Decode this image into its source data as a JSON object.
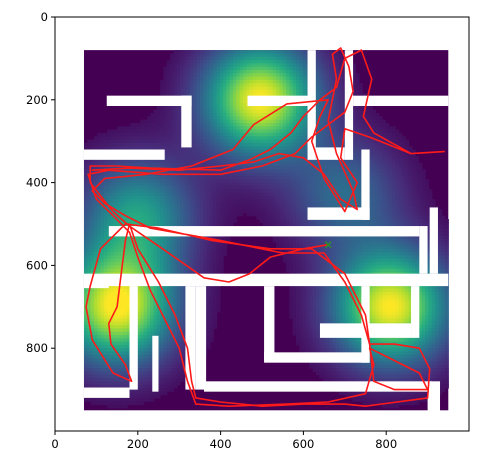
{
  "chart_data": {
    "type": "heatmap",
    "title": "",
    "xlabel": "",
    "ylabel": "",
    "xlim": [
      0,
      1000
    ],
    "ylim": [
      1000,
      0
    ],
    "x_ticks": [
      0,
      200,
      400,
      600,
      800
    ],
    "y_ticks": [
      0,
      200,
      400,
      600,
      800
    ],
    "x_tick_labels": [
      "0",
      "200",
      "400",
      "600",
      "800"
    ],
    "y_tick_labels": [
      "0",
      "200",
      "400",
      "600",
      "800"
    ],
    "colormap": "viridis",
    "background_color": "#ffffff",
    "dark_color": "#440154",
    "path_color": "#ff1a1a",
    "start_marker_color": "#2e8b2e",
    "maze_outer": [
      70,
      80,
      950,
      950
    ],
    "maze_walls": [
      [
        125,
        190,
        330,
        215
      ],
      [
        305,
        190,
        330,
        315
      ],
      [
        465,
        190,
        610,
        215
      ],
      [
        70,
        320,
        265,
        345
      ],
      [
        610,
        80,
        630,
        345
      ],
      [
        630,
        315,
        700,
        345
      ],
      [
        700,
        80,
        720,
        345
      ],
      [
        720,
        190,
        950,
        215
      ],
      [
        610,
        460,
        760,
        490
      ],
      [
        740,
        320,
        760,
        490
      ],
      [
        130,
        505,
        880,
        530
      ],
      [
        880,
        505,
        900,
        620
      ],
      [
        905,
        460,
        925,
        620
      ],
      [
        70,
        620,
        950,
        650
      ],
      [
        70,
        630,
        130,
        655
      ],
      [
        180,
        650,
        200,
        900
      ],
      [
        315,
        650,
        340,
        900
      ],
      [
        340,
        650,
        365,
        900
      ],
      [
        70,
        895,
        180,
        920
      ],
      [
        360,
        880,
        910,
        905
      ],
      [
        235,
        770,
        250,
        905
      ],
      [
        505,
        650,
        530,
        830
      ],
      [
        505,
        810,
        760,
        835
      ],
      [
        740,
        650,
        760,
        835
      ],
      [
        640,
        740,
        860,
        775
      ],
      [
        860,
        650,
        880,
        775
      ],
      [
        900,
        880,
        930,
        960
      ],
      [
        420,
        960,
        880,
        980
      ]
    ],
    "heat_sources": [
      {
        "x": 495,
        "y": 200,
        "strength": 1.0
      },
      {
        "x": 150,
        "y": 700,
        "strength": 1.0
      },
      {
        "x": 810,
        "y": 700,
        "strength": 1.0
      },
      {
        "x": 200,
        "y": 480,
        "strength": 0.55
      },
      {
        "x": 700,
        "y": 430,
        "strength": 0.35
      }
    ],
    "trajectory": [
      [
        660,
        550
      ],
      [
        600,
        560
      ],
      [
        520,
        580
      ],
      [
        470,
        620
      ],
      [
        420,
        640
      ],
      [
        360,
        630
      ],
      [
        260,
        560
      ],
      [
        180,
        505
      ],
      [
        140,
        470
      ],
      [
        85,
        400
      ],
      [
        85,
        360
      ],
      [
        150,
        360
      ],
      [
        230,
        365
      ],
      [
        400,
        370
      ],
      [
        470,
        345
      ],
      [
        520,
        320
      ],
      [
        570,
        280
      ],
      [
        600,
        240
      ],
      [
        640,
        200
      ],
      [
        680,
        170
      ],
      [
        700,
        100
      ],
      [
        740,
        80
      ],
      [
        765,
        150
      ],
      [
        745,
        240
      ],
      [
        770,
        280
      ],
      [
        860,
        330
      ],
      [
        940,
        325
      ],
      [
        860,
        330
      ],
      [
        760,
        290
      ],
      [
        700,
        270
      ],
      [
        690,
        340
      ],
      [
        730,
        400
      ],
      [
        700,
        470
      ],
      [
        650,
        390
      ],
      [
        620,
        300
      ],
      [
        640,
        240
      ],
      [
        660,
        200
      ],
      [
        560,
        210
      ],
      [
        480,
        260
      ],
      [
        430,
        320
      ],
      [
        330,
        360
      ],
      [
        220,
        380
      ],
      [
        120,
        390
      ],
      [
        90,
        420
      ],
      [
        120,
        450
      ],
      [
        170,
        480
      ],
      [
        230,
        510
      ],
      [
        400,
        540
      ],
      [
        550,
        570
      ],
      [
        650,
        570
      ],
      [
        700,
        640
      ],
      [
        740,
        720
      ],
      [
        760,
        790
      ],
      [
        750,
        720
      ],
      [
        700,
        620
      ],
      [
        620,
        560
      ],
      [
        520,
        560
      ],
      [
        380,
        540
      ],
      [
        250,
        510
      ],
      [
        170,
        500
      ],
      [
        110,
        560
      ],
      [
        85,
        650
      ],
      [
        75,
        700
      ],
      [
        90,
        780
      ],
      [
        140,
        860
      ],
      [
        185,
        880
      ],
      [
        170,
        840
      ],
      [
        135,
        790
      ],
      [
        130,
        740
      ],
      [
        150,
        700
      ],
      [
        160,
        620
      ],
      [
        170,
        540
      ],
      [
        180,
        500
      ],
      [
        200,
        560
      ],
      [
        250,
        640
      ],
      [
        290,
        720
      ],
      [
        320,
        800
      ],
      [
        330,
        880
      ],
      [
        340,
        920
      ],
      [
        400,
        930
      ],
      [
        500,
        940
      ],
      [
        600,
        935
      ],
      [
        700,
        935
      ],
      [
        750,
        940
      ],
      [
        900,
        920
      ],
      [
        905,
        850
      ],
      [
        880,
        800
      ],
      [
        820,
        790
      ],
      [
        760,
        790
      ],
      [
        770,
        880
      ],
      [
        820,
        900
      ],
      [
        900,
        900
      ],
      [
        880,
        860
      ],
      [
        800,
        820
      ],
      [
        760,
        800
      ],
      [
        770,
        840
      ],
      [
        750,
        910
      ],
      [
        660,
        930
      ],
      [
        560,
        935
      ],
      [
        420,
        940
      ],
      [
        340,
        935
      ],
      [
        320,
        880
      ],
      [
        300,
        800
      ],
      [
        270,
        740
      ],
      [
        230,
        660
      ],
      [
        200,
        580
      ],
      [
        180,
        520
      ],
      [
        140,
        480
      ],
      [
        100,
        440
      ],
      [
        80,
        380
      ],
      [
        130,
        370
      ],
      [
        260,
        380
      ],
      [
        400,
        380
      ],
      [
        500,
        360
      ],
      [
        580,
        330
      ],
      [
        620,
        290
      ],
      [
        660,
        260
      ],
      [
        700,
        230
      ],
      [
        720,
        180
      ],
      [
        710,
        120
      ],
      [
        690,
        75
      ],
      [
        670,
        90
      ],
      [
        680,
        150
      ],
      [
        660,
        250
      ],
      [
        680,
        330
      ],
      [
        720,
        420
      ],
      [
        730,
        465
      ],
      [
        690,
        440
      ],
      [
        650,
        380
      ],
      [
        600,
        340
      ],
      [
        540,
        330
      ],
      [
        480,
        350
      ],
      [
        400,
        360
      ],
      [
        300,
        370
      ],
      [
        180,
        365
      ],
      [
        90,
        370
      ]
    ],
    "start_marker": [
      660,
      550
    ]
  }
}
